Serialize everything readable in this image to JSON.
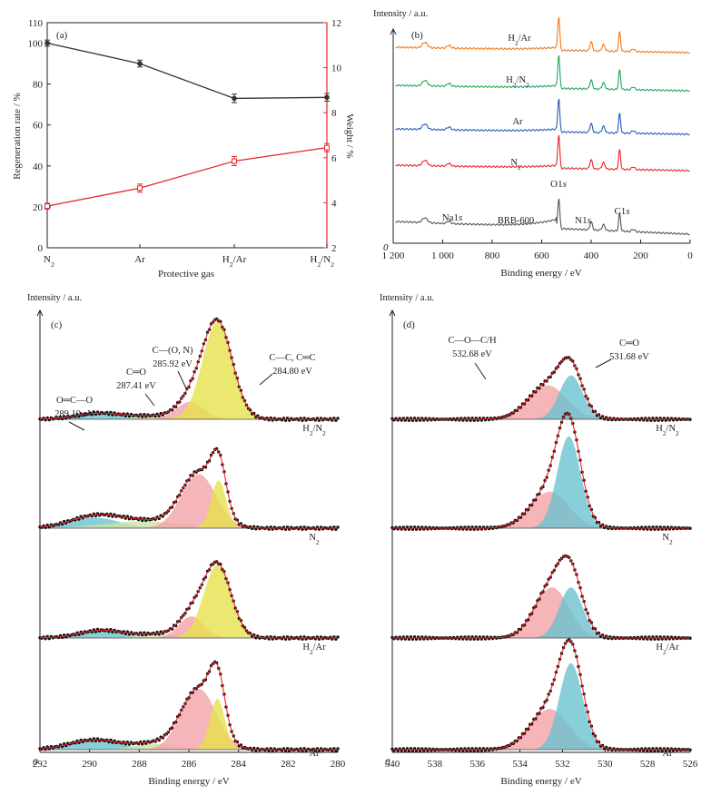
{
  "chart_data": [
    {
      "panel": "(a)",
      "type": "line",
      "xlabel": "Protective gas",
      "ylabel": "Regeneration rate / %",
      "y2label": "Weight / %",
      "categories": [
        "N2",
        "Ar",
        "H2/Ar",
        "H2/N2"
      ],
      "x_ticks": [
        {
          "base": "N",
          "sub": "2",
          "tail": ""
        },
        {
          "base": "Ar",
          "sub": "",
          "tail": ""
        },
        {
          "base": "H",
          "sub": "2",
          "tail": "/Ar"
        },
        {
          "base": "H",
          "sub": "2",
          "tail": "/N",
          "sub2": "2"
        }
      ],
      "ylim": [
        0,
        110
      ],
      "y_ticks": [
        0,
        20,
        40,
        60,
        80,
        100,
        110
      ],
      "y2lim": [
        2,
        12
      ],
      "y2_ticks": [
        2,
        4,
        6,
        8,
        10,
        12
      ],
      "series": [
        {
          "axis": "left",
          "color": "#333333",
          "values": [
            100,
            90,
            73,
            73.5
          ],
          "errors": [
            0.6,
            0.8,
            1.2,
            1.0
          ]
        },
        {
          "axis": "right",
          "color": "#e8242a",
          "values": [
            3.85,
            4.65,
            5.85,
            6.45
          ],
          "errors": [
            0.05,
            0.1,
            0.12,
            0.1
          ]
        }
      ]
    },
    {
      "panel": "(b)",
      "type": "line",
      "xlabel": "Binding energy / eV",
      "ylabel": "Intensity / a.u.",
      "origin_label": "0",
      "xlim": [
        1200,
        0
      ],
      "x_ticks": [
        "1 200",
        "1 000",
        "800",
        "600",
        "400",
        "200",
        "0"
      ],
      "series": [
        {
          "name": "BRB-600",
          "color": "#555555",
          "sub": "",
          "tail": ""
        },
        {
          "name": "N",
          "sub": "2",
          "tail": "",
          "color": "#e8242a"
        },
        {
          "name": "Ar",
          "sub": "",
          "tail": "",
          "color": "#1f5fb4"
        },
        {
          "name": "H",
          "sub": "2",
          "tail": "/N",
          "sub2": "2",
          "color": "#20a85a"
        },
        {
          "name": "H",
          "sub": "2",
          "tail": "/Ar",
          "color": "#f07a1a"
        }
      ],
      "peak_labels": [
        {
          "text": "Na1",
          "ital": "s"
        },
        {
          "text": "O1",
          "ital": "s"
        },
        {
          "text": "N1",
          "ital": "s"
        },
        {
          "text": "C1",
          "ital": "s"
        }
      ],
      "peak_positions": [
        1072,
        531,
        400,
        285
      ]
    },
    {
      "panel": "(c)",
      "type": "line",
      "xlabel": "Binding energy / eV",
      "ylabel": "Intensity / a.u.",
      "origin_label": "0",
      "xlim": [
        292,
        280
      ],
      "x_ticks": [
        292,
        290,
        288,
        286,
        284,
        282,
        280
      ],
      "sample_labels": [
        {
          "base": "H",
          "sub": "2",
          "tail": "/N",
          "sub2": "2"
        },
        {
          "base": "N",
          "sub": "2",
          "tail": ""
        },
        {
          "base": "H",
          "sub": "2",
          "tail": "/Ar"
        },
        {
          "base": "Ar",
          "sub": "",
          "tail": ""
        }
      ],
      "annotations": [
        {
          "name": "O═C—O",
          "value": "289.10 eV"
        },
        {
          "name": "C═O",
          "value": "287.41 eV"
        },
        {
          "name": "C—(O, N)",
          "value": "285.92 eV"
        },
        {
          "name": "C—C, C═C",
          "value": "284.80 eV"
        }
      ],
      "component_colors": [
        "#6cc3cf",
        "#cfe2a2",
        "#f3a3a8",
        "#e6e24e"
      ],
      "spectra": [
        {
          "components": [
            {
              "c": 289.6,
              "a": 0.06,
              "w": 0.9
            },
            {
              "c": 287.5,
              "a": 0.03,
              "w": 0.8
            },
            {
              "c": 285.95,
              "a": 0.17,
              "w": 0.55
            },
            {
              "c": 284.85,
              "a": 0.95,
              "w": 0.6
            }
          ]
        },
        {
          "components": [
            {
              "c": 289.8,
              "a": 0.12,
              "w": 1.0
            },
            {
              "c": 287.8,
              "a": 0.08,
              "w": 1.5
            },
            {
              "c": 285.6,
              "a": 0.62,
              "w": 0.7
            },
            {
              "c": 284.8,
              "a": 0.55,
              "w": 0.3
            }
          ]
        },
        {
          "components": [
            {
              "c": 289.5,
              "a": 0.1,
              "w": 0.9
            },
            {
              "c": 287.2,
              "a": 0.05,
              "w": 0.8
            },
            {
              "c": 285.9,
              "a": 0.28,
              "w": 0.5
            },
            {
              "c": 284.85,
              "a": 0.95,
              "w": 0.55
            }
          ]
        },
        {
          "components": [
            {
              "c": 289.8,
              "a": 0.1,
              "w": 1.0
            },
            {
              "c": 287.4,
              "a": 0.06,
              "w": 0.8
            },
            {
              "c": 285.6,
              "a": 0.62,
              "w": 0.7
            },
            {
              "c": 284.85,
              "a": 0.52,
              "w": 0.3
            }
          ]
        }
      ]
    },
    {
      "panel": "(d)",
      "type": "line",
      "xlabel": "Binding energy / eV",
      "ylabel": "Intensity / a.u.",
      "origin_label": "0",
      "xlim": [
        540,
        526
      ],
      "x_ticks": [
        540,
        538,
        536,
        534,
        532,
        530,
        528,
        526
      ],
      "sample_labels": [
        {
          "base": "H",
          "sub": "2",
          "tail": "/N",
          "sub2": "2"
        },
        {
          "base": "N",
          "sub": "2",
          "tail": ""
        },
        {
          "base": "H",
          "sub": "2",
          "tail": "/Ar"
        },
        {
          "base": "Ar",
          "sub": "",
          "tail": ""
        }
      ],
      "annotations": [
        {
          "name": "C—O—C/H",
          "value": "532.68 eV"
        },
        {
          "name": "C═O",
          "value": "531.68 eV"
        }
      ],
      "component_colors": [
        "#f3a3a8",
        "#6cc3cf"
      ],
      "spectra": [
        {
          "components": [
            {
              "c": 532.7,
              "a": 0.48,
              "w": 0.9
            },
            {
              "c": 531.6,
              "a": 0.62,
              "w": 0.55
            }
          ]
        },
        {
          "components": [
            {
              "c": 532.6,
              "a": 0.35,
              "w": 0.9
            },
            {
              "c": 531.7,
              "a": 0.88,
              "w": 0.55
            }
          ]
        },
        {
          "components": [
            {
              "c": 532.5,
              "a": 0.62,
              "w": 0.8
            },
            {
              "c": 531.6,
              "a": 0.62,
              "w": 0.55
            }
          ]
        },
        {
          "components": [
            {
              "c": 532.6,
              "a": 0.4,
              "w": 0.9
            },
            {
              "c": 531.6,
              "a": 0.85,
              "w": 0.55
            }
          ]
        }
      ]
    }
  ]
}
